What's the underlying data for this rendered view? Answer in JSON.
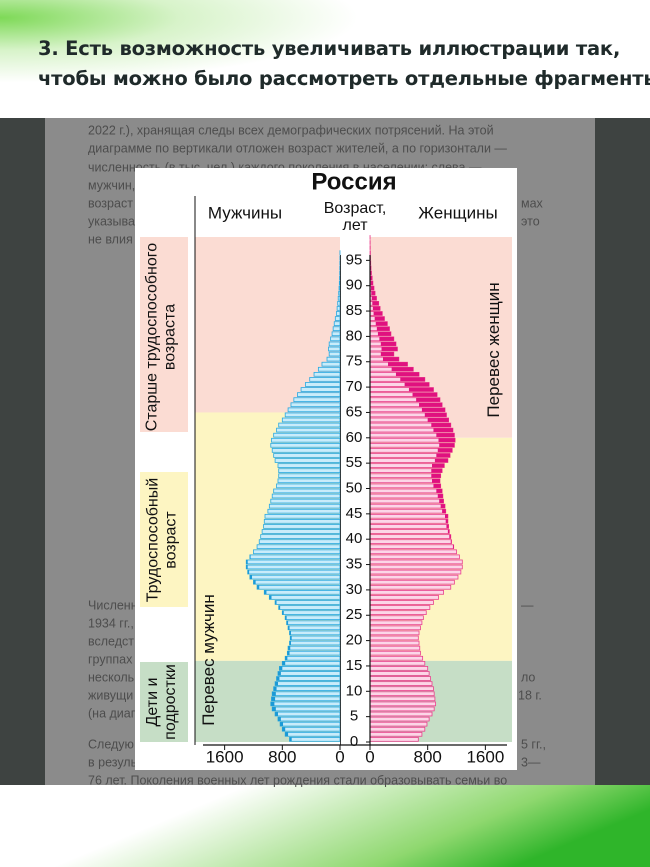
{
  "header": {
    "lines": [
      "3. Есть возможность увеличивать иллюстрации так,",
      "чтобы можно было рассмотреть отдельные фрагменты"
    ]
  },
  "document": {
    "lines": [
      "2022 г.), хранящая следы всех демографических потрясений. На этой",
      "диаграмме по вертикали отложен возраст жителей, а по горизонтали —",
      "численность (в тыс. чел.) каждого поколения в населении: слева —",
      "мужчин,",
      "возраст",
      "указыва",
      "не влия",
      "мах",
      "это",
      "Численн",
      "1934 гг.,",
      "вследст",
      "группах",
      "нескольк",
      "живущи",
      "(на диаг",
      "—",
      "ло",
      "18 г.",
      "Следую",
      "5 гг.,",
      "в резуль",
      "3—",
      "76 лет. Поколения военных лет рождения стали образовывать семьи во"
    ]
  },
  "chart_data": {
    "type": "population_pyramid",
    "title": "Россия",
    "x_label": "Возраст, лет",
    "annotations": {
      "older": "Старше трудоспособного возраста",
      "working": "Трудоспособный возраст",
      "children": "Дети и подростки",
      "male_excess": "Перевес мужчин",
      "female_excess": "Перевес женщин"
    },
    "x": [
      0,
      1,
      2,
      3,
      4,
      5,
      6,
      7,
      8,
      9,
      10,
      11,
      12,
      13,
      14,
      15,
      16,
      17,
      18,
      19,
      20,
      21,
      22,
      23,
      24,
      25,
      26,
      27,
      28,
      29,
      30,
      31,
      32,
      33,
      34,
      35,
      36,
      37,
      38,
      39,
      40,
      41,
      42,
      43,
      44,
      45,
      46,
      47,
      48,
      49,
      50,
      51,
      52,
      53,
      54,
      55,
      56,
      57,
      58,
      59,
      60,
      61,
      62,
      63,
      64,
      65,
      66,
      67,
      68,
      69,
      70,
      71,
      72,
      73,
      74,
      75,
      76,
      77,
      78,
      79,
      80,
      81,
      82,
      83,
      84,
      85,
      86,
      87,
      88,
      89,
      90,
      91,
      92,
      93,
      94,
      95,
      96,
      97,
      98,
      99
    ],
    "xlim": [
      0,
      100
    ],
    "xticks": [
      0,
      5,
      10,
      15,
      20,
      25,
      30,
      35,
      40,
      45,
      50,
      55,
      60,
      65,
      70,
      75,
      80,
      85,
      90,
      95
    ],
    "ylim": [
      0,
      1900
    ],
    "yticks": [
      0,
      800,
      1600
    ],
    "series": [
      {
        "name": "Мужчины",
        "color": "#29a8e0",
        "values": [
          700,
          760,
          800,
          830,
          860,
          900,
          940,
          960,
          950,
          940,
          920,
          900,
          880,
          860,
          840,
          800,
          760,
          730,
          720,
          700,
          690,
          700,
          720,
          740,
          760,
          800,
          850,
          900,
          980,
          1050,
          1150,
          1200,
          1250,
          1280,
          1300,
          1300,
          1250,
          1200,
          1150,
          1120,
          1100,
          1080,
          1060,
          1050,
          1040,
          1000,
          980,
          960,
          940,
          920,
          880,
          860,
          850,
          850,
          860,
          900,
          920,
          940,
          960,
          950,
          920,
          880,
          850,
          800,
          760,
          720,
          680,
          640,
          590,
          540,
          480,
          420,
          360,
          300,
          250,
          180,
          150,
          160,
          150,
          130,
          110,
          95,
          80,
          65,
          50,
          40,
          32,
          25,
          18,
          13,
          9,
          6,
          4,
          3,
          2,
          1,
          1,
          0,
          0,
          0
        ]
      },
      {
        "name": "Женщины",
        "color": "#e8408c",
        "values": [
          670,
          720,
          760,
          790,
          820,
          860,
          890,
          910,
          900,
          890,
          880,
          860,
          840,
          820,
          800,
          760,
          730,
          700,
          690,
          680,
          670,
          680,
          700,
          720,
          740,
          780,
          830,
          880,
          950,
          1020,
          1120,
          1170,
          1220,
          1260,
          1280,
          1280,
          1240,
          1200,
          1160,
          1130,
          1120,
          1100,
          1090,
          1080,
          1080,
          1050,
          1040,
          1020,
          1010,
          1000,
          980,
          970,
          980,
          1000,
          1030,
          1080,
          1110,
          1140,
          1170,
          1180,
          1170,
          1150,
          1120,
          1090,
          1060,
          1040,
          1000,
          970,
          930,
          880,
          820,
          760,
          680,
          600,
          520,
          400,
          330,
          380,
          360,
          330,
          290,
          270,
          240,
          200,
          170,
          140,
          120,
          90,
          70,
          55,
          40,
          30,
          20,
          14,
          10,
          7,
          5,
          3,
          2,
          1
        ]
      }
    ]
  }
}
